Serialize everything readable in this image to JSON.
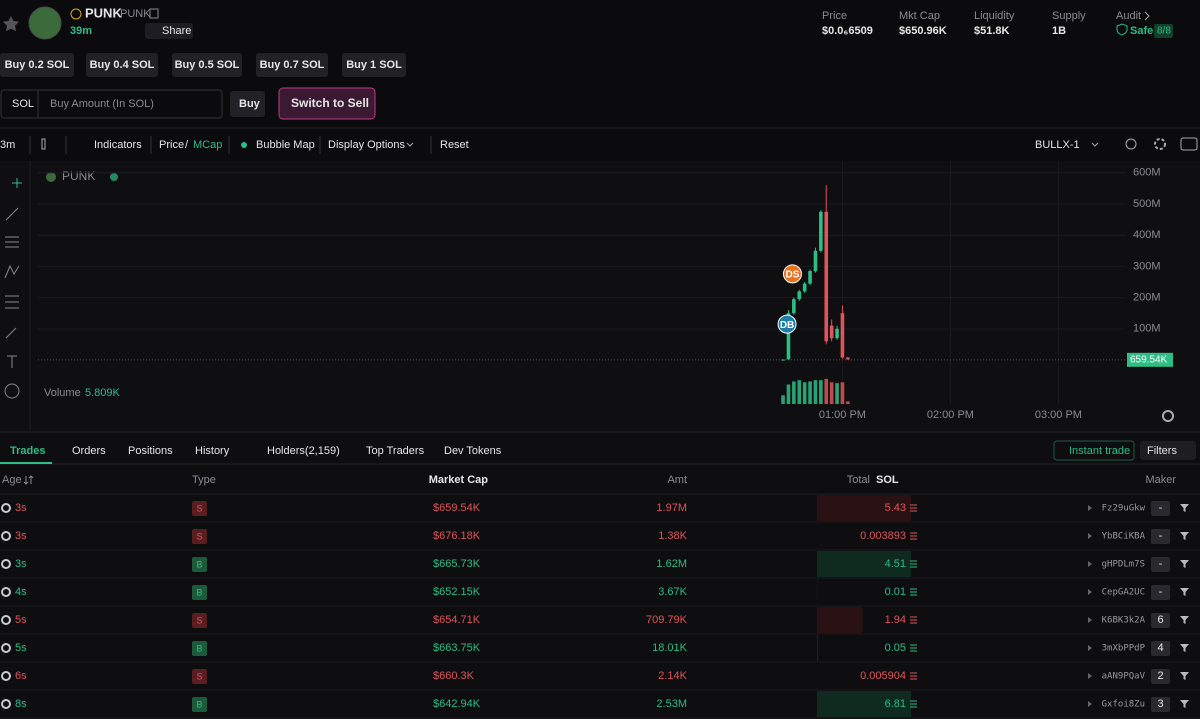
{
  "header": {
    "name": "PUNK",
    "ticker": "PUNK",
    "age": "39m",
    "share": "Share"
  },
  "stats": [
    {
      "label": "Price",
      "value": "$0.0₆6509"
    },
    {
      "label": "Mkt Cap",
      "value": "$650.96K"
    },
    {
      "label": "Liquidity",
      "value": "$51.8K"
    },
    {
      "label": "Supply",
      "value": "1B"
    }
  ],
  "audit": {
    "label": "Audit",
    "status": "Safe",
    "score": "8/8"
  },
  "quick_buy": [
    "Buy 0.2 SOL",
    "Buy 0.4 SOL",
    "Buy 0.5 SOL",
    "Buy 0.7 SOL",
    "Buy 1 SOL"
  ],
  "order": {
    "currency": "SOL",
    "placeholder": "Buy Amount (In SOL)",
    "buy": "Buy",
    "switch": "Switch to Sell"
  },
  "toolbar": {
    "interval": "3m",
    "indicators": "Indicators",
    "price": "Price",
    "separator": "/",
    "mcap": "MCap",
    "bubble": "Bubble Map",
    "display": "Display Options",
    "reset": "Reset",
    "layout": "BULLX-1"
  },
  "chart_data": {
    "type": "candlestick",
    "title": "PUNK",
    "volume_label": "Volume",
    "volume_value": "5.809K",
    "x": [
      "12:27 PM",
      "12:30 PM",
      "12:33 PM",
      "12:36 PM",
      "12:39 PM",
      "12:42 PM",
      "12:45 PM",
      "12:48 PM",
      "12:51 PM",
      "12:54 PM",
      "12:57 PM",
      "01:00 PM",
      "01:03 PM"
    ],
    "open": [
      1,
      2,
      150,
      195,
      220,
      245,
      285,
      350,
      475,
      110,
      70,
      150,
      8
    ],
    "high": [
      2,
      160,
      200,
      225,
      250,
      290,
      360,
      480,
      560,
      130,
      110,
      175,
      10
    ],
    "low": [
      0.5,
      1,
      145,
      190,
      215,
      240,
      280,
      345,
      50,
      60,
      65,
      5,
      1
    ],
    "close": [
      1.5,
      150,
      195,
      220,
      245,
      285,
      350,
      475,
      60,
      70,
      100,
      8,
      2
    ],
    "volume": [
      20,
      45,
      52,
      55,
      50,
      52,
      55,
      55,
      58,
      50,
      48,
      50,
      6
    ],
    "volume_lim": [
      0,
      60
    ],
    "up_color": "#2ebd85",
    "down_color": "#e0545c",
    "xlim": [
      "05:33 AM",
      "03:37 PM"
    ],
    "xticks": [
      "01:00 PM",
      "02:00 PM",
      "03:00 PM"
    ],
    "ylim": [
      -48,
      625
    ],
    "yticks": [
      {
        "value": 100,
        "label": "100M"
      },
      {
        "value": 200,
        "label": "200M"
      },
      {
        "value": 300,
        "label": "300M"
      },
      {
        "value": 400,
        "label": "400M"
      },
      {
        "value": 500,
        "label": "500M"
      },
      {
        "value": 600,
        "label": "600M"
      }
    ],
    "current": {
      "value": 0.65954,
      "label": "659.54K"
    },
    "markers": [
      {
        "label": "DS",
        "x": "12:30 PM",
        "value": 276
      },
      {
        "label": "DB",
        "x": "12:27 PM",
        "value": 115
      }
    ],
    "grid": true
  },
  "tabs": [
    "Trades",
    "Orders",
    "Positions",
    "History",
    "Holders(2,159)",
    "Top Traders",
    "Dev Tokens"
  ],
  "actions": {
    "instant": "Instant trade",
    "filters": "Filters"
  },
  "table": {
    "columns": [
      "Age",
      "Type",
      "Market Cap",
      "Amt",
      "Total",
      "SOL",
      "Maker"
    ],
    "rows": [
      [
        "3s",
        "S",
        "$659.54K",
        "1.97M",
        5.43,
        "Fz29uGkw",
        "-"
      ],
      [
        "3s",
        "S",
        "$676.18K",
        "1.38K",
        0.003893,
        "YbBCiKBA",
        "-"
      ],
      [
        "3s",
        "B",
        "$665.73K",
        "1.62M",
        4.51,
        "gHPDLm7S",
        "-"
      ],
      [
        "4s",
        "B",
        "$652.15K",
        "3.67K",
        0.01,
        "CepGA2UC",
        "-"
      ],
      [
        "5s",
        "S",
        "$654.71K",
        "709.79K",
        1.94,
        "K6BK3k2A",
        "6"
      ],
      [
        "5s",
        "B",
        "$663.75K",
        "18.01K",
        0.05,
        "3mXbPPdP",
        "4"
      ],
      [
        "6s",
        "S",
        "$660.3K",
        "2.14K",
        0.005904,
        "aAN9PQaV",
        "2"
      ],
      [
        "8s",
        "B",
        "$642.94K",
        "2.53M",
        6.81,
        "Gxfoi8Zu",
        "3"
      ]
    ]
  }
}
